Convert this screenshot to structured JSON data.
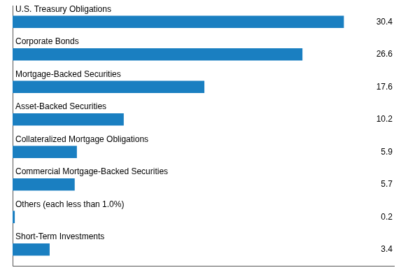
{
  "chart_data": {
    "type": "bar",
    "orientation": "horizontal",
    "categories": [
      "Short-Term Investments",
      "Others (each less than 1.0%)",
      "Commercial Mortgage-Backed Securities",
      "Collateralized Mortgage Obligations",
      "Asset-Backed Securities",
      "Mortgage-Backed Securities",
      "Corporate Bonds",
      "U.S. Treasury Obligations"
    ],
    "values": [
      3.4,
      0.2,
      5.7,
      5.9,
      10.2,
      17.6,
      26.6,
      30.4
    ],
    "color": "#1a7fc1",
    "xlim": [
      0,
      35
    ],
    "data_labels": true,
    "tick_labels": false,
    "grid": false
  }
}
